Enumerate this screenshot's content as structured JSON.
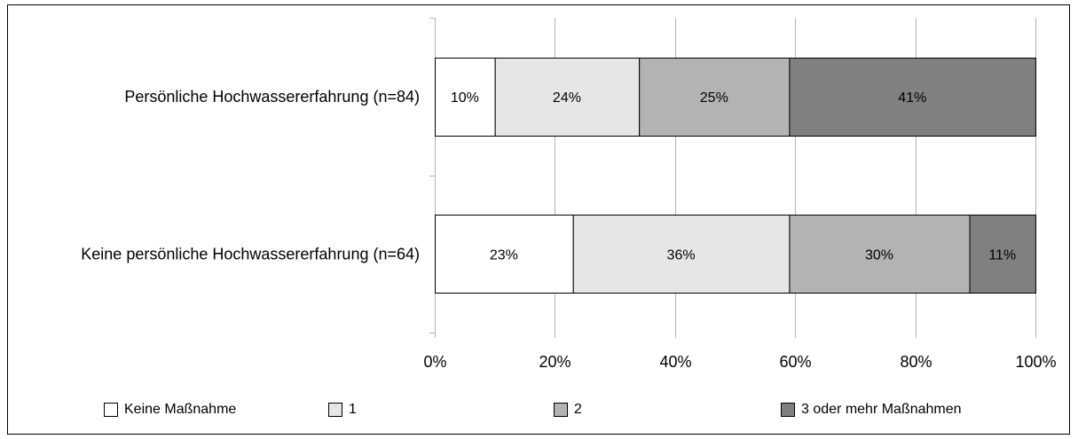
{
  "chart_data": {
    "type": "bar",
    "orientation": "horizontal",
    "stacked": true,
    "percent": true,
    "categories": [
      "Persönliche Hochwassererfahrung (n=84)",
      "Keine persönliche Hochwassererfahrung (n=64)"
    ],
    "series": [
      {
        "name": "Keine Maßnahme",
        "values": [
          10,
          23
        ],
        "labels": [
          "10%",
          "23%"
        ],
        "color": "#ffffff"
      },
      {
        "name": "1",
        "values": [
          24,
          36
        ],
        "labels": [
          "24%",
          "36%"
        ],
        "color": "#e6e6e6"
      },
      {
        "name": "2",
        "values": [
          25,
          30
        ],
        "labels": [
          "25%",
          "30%"
        ],
        "color": "#b3b3b3"
      },
      {
        "name": "3 oder mehr Maßnahmen",
        "values": [
          41,
          11
        ],
        "labels": [
          "41%",
          "11%"
        ],
        "color": "#808080"
      }
    ],
    "xlim": [
      0,
      100
    ],
    "x_ticks": [
      "0%",
      "20%",
      "40%",
      "60%",
      "80%",
      "100%"
    ],
    "grid": true,
    "legend_position": "bottom"
  }
}
